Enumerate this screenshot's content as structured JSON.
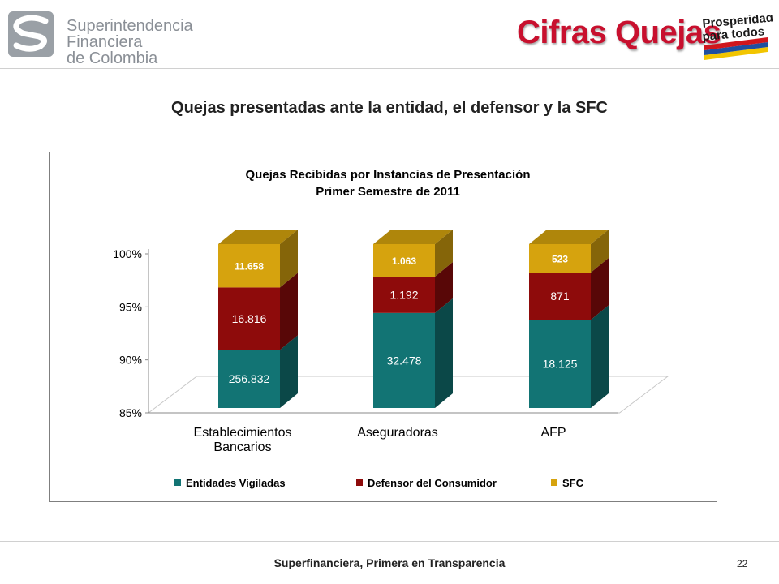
{
  "header": {
    "org_lines": [
      "Superintendencia",
      "Financiera",
      "de Colombia"
    ],
    "title": "Cifras Quejas",
    "right_logo": [
      "Prosperidad",
      "para todos"
    ]
  },
  "subtitle": "Quejas presentadas ante la entidad, el defensor y la SFC",
  "footer": {
    "text": "Superfinanciera, Primera en Transparencia",
    "page": "22"
  },
  "colors": {
    "title_red": "#c8102e",
    "teal": "#127474",
    "red": "#8e0b0b",
    "gold": "#d6a30e"
  },
  "chart_data": {
    "type": "bar",
    "stacked": "percent",
    "title": [
      "Quejas Recibidas  por Instancias de Presentación",
      "Primer Semestre  de 2011"
    ],
    "categories": [
      [
        "Establecimientos",
        "Bancarios"
      ],
      [
        "Aseguradoras"
      ],
      [
        "AFP"
      ]
    ],
    "series": [
      {
        "name": "Entidades Vigiladas",
        "values": [
          256832,
          32478,
          18125
        ],
        "labels": [
          "256.832",
          "32.478",
          "18.125"
        ]
      },
      {
        "name": "Defensor del Consumidor",
        "values": [
          16816,
          1192,
          871
        ],
        "labels": [
          "16.816",
          "1.192",
          "871"
        ]
      },
      {
        "name": "SFC",
        "values": [
          11658,
          1063,
          523
        ],
        "labels": [
          "11.658",
          "1.063",
          "523"
        ]
      }
    ],
    "ylim": [
      85,
      100
    ],
    "yticks": [
      "85%",
      "90%",
      "95%",
      "100%"
    ],
    "ytick_values": [
      85,
      90,
      95,
      100
    ],
    "legend_position": "bottom"
  }
}
